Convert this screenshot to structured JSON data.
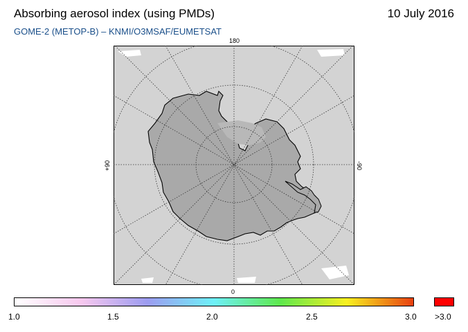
{
  "header": {
    "title": "Absorbing aerosol index (using PMDs)",
    "date": "10 July 2016",
    "subtitle": "GOME-2 (METOP-B)  –   KNMI/O3MSAF/EUMETSAT"
  },
  "map": {
    "projection": "polar stereographic (south pole)",
    "longitude_labels": {
      "top": "180",
      "bottom": "0",
      "left": "+90",
      "right": "-90"
    },
    "colors": {
      "frame_bg": "#d3d3d3",
      "land": "#a7a7a7",
      "coast": "#000000",
      "grid": "#333333",
      "no_data": "#ffffff"
    }
  },
  "colorbar": {
    "ticks": [
      "1.0",
      "1.5",
      "2.0",
      "2.5",
      "3.0"
    ],
    "overflow_label": ">3.0",
    "overflow_color": "#ff0000",
    "gradient_stops": [
      "#ffffff",
      "#f7c8ee",
      "#9c9cf0",
      "#6ef0f8",
      "#5ee84c",
      "#f8f020",
      "#e84010"
    ]
  }
}
